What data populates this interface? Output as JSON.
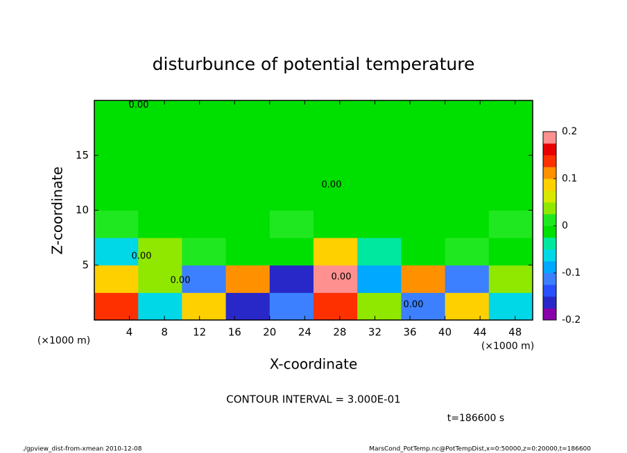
{
  "chart_data": {
    "type": "heatmap",
    "title": "disturbunce of potential temperature",
    "x_label": "X-coordinate",
    "y_label": "Z-coordinate",
    "x_unit": "(×1000 m)",
    "y_unit": "(×1000 m)",
    "x": [
      2.5,
      7.5,
      12.5,
      17.5,
      22.5,
      27.5,
      32.5,
      37.5,
      42.5,
      47.5
    ],
    "y": [
      1.25,
      3.75,
      6.25,
      8.75,
      11.25,
      13.75,
      16.25,
      18.75
    ],
    "values": [
      [
        0.15,
        -0.05,
        0.1,
        -0.15,
        -0.1,
        0.15,
        0.05,
        -0.12,
        0.1,
        -0.05
      ],
      [
        0.1,
        0.05,
        -0.1,
        0.12,
        -0.15,
        0.18,
        -0.08,
        0.12,
        -0.1,
        0.05
      ],
      [
        -0.05,
        0.03,
        0.02,
        -0.02,
        0,
        0.08,
        -0.03,
        0,
        0.02,
        -0.02
      ],
      [
        0.01,
        -0.01,
        0,
        0,
        0.01,
        0,
        -0.01,
        0,
        0,
        0.01
      ],
      [
        0,
        0,
        0,
        0,
        0,
        0,
        0,
        0,
        0,
        0
      ],
      [
        0,
        0,
        0,
        0,
        0,
        0,
        0,
        0,
        0,
        0
      ],
      [
        0,
        0,
        0,
        0,
        0,
        0,
        0,
        0,
        0,
        0
      ],
      [
        0,
        0,
        0,
        0,
        0,
        0,
        0,
        0,
        0,
        0
      ]
    ],
    "xlim": [
      0,
      50
    ],
    "ylim": [
      0,
      20
    ],
    "xticks": [
      4,
      8,
      12,
      16,
      20,
      24,
      28,
      32,
      36,
      40,
      44,
      48
    ],
    "yticks": [
      5,
      10,
      15
    ],
    "colorbar": {
      "levels": [
        -0.2,
        -0.175,
        -0.15,
        -0.125,
        -0.1,
        -0.075,
        -0.05,
        -0.025,
        0,
        0.025,
        0.05,
        0.075,
        0.1,
        0.125,
        0.15,
        0.175,
        0.2
      ],
      "colors": [
        "#8a00a8",
        "#2828c8",
        "#2850ff",
        "#3c80ff",
        "#00a8ff",
        "#00d8e8",
        "#00e8a0",
        "#00e000",
        "#20e820",
        "#90e800",
        "#d8e800",
        "#ffd000",
        "#ff9000",
        "#ff3000",
        "#e80000",
        "#ff9090"
      ],
      "ticks": [
        -0.2,
        -0.1,
        0,
        0.1,
        0.2
      ]
    },
    "annotations": [
      "CONTOUR INTERVAL = 3.000E-01",
      "t=186600 s"
    ],
    "contour_labels": [
      "0.00",
      "0.00",
      "0.00",
      "0.00",
      "0.00",
      "0.00"
    ],
    "footer_left": "./gpview_dist-from-xmean  2010-12-08",
    "footer_right": "MarsCond_PotTemp.nc@PotTempDist,x=0:50000,z=0:20000,t=186600"
  }
}
